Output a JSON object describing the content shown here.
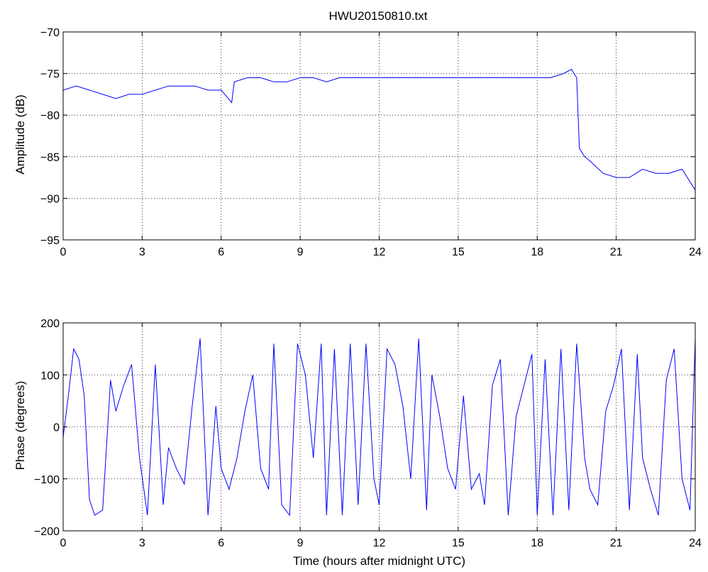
{
  "chart_data": [
    {
      "type": "line",
      "title": "HWU20150810.txt",
      "xlabel": "",
      "ylabel": "Amplitude (dB)",
      "xlim": [
        0,
        24
      ],
      "ylim": [
        -95,
        -70
      ],
      "xticks": [
        "0",
        "3",
        "6",
        "9",
        "12",
        "15",
        "18",
        "21",
        "24"
      ],
      "yticks": [
        "−70",
        "−75",
        "−80",
        "−85",
        "−90",
        "−95"
      ],
      "grid": true,
      "color": "#0000ff",
      "series": [
        {
          "x": [
            0,
            0.5,
            1,
            1.5,
            2,
            2.5,
            3,
            3.5,
            4,
            4.5,
            5,
            5.5,
            6,
            6.4,
            6.5,
            7,
            7.5,
            8,
            8.5,
            9,
            9.5,
            10,
            10.5,
            11,
            11.5,
            12,
            12.5,
            13,
            13.5,
            14,
            14.5,
            15,
            15.5,
            16,
            16.5,
            17,
            17.5,
            18,
            18.5,
            19,
            19.3,
            19.5,
            19.6,
            19.8,
            20,
            20.5,
            21,
            21.5,
            22,
            22.5,
            23,
            23.5,
            24
          ],
          "values": [
            -77,
            -76.5,
            -77,
            -77.5,
            -78,
            -77.5,
            -77.5,
            -77,
            -76.5,
            -76.5,
            -76.5,
            -77,
            -77,
            -78.5,
            -76,
            -75.5,
            -75.5,
            -76,
            -76,
            -75.5,
            -75.5,
            -76,
            -75.5,
            -75.5,
            -75.5,
            -75.5,
            -75.5,
            -75.5,
            -75.5,
            -75.5,
            -75.5,
            -75.5,
            -75.5,
            -75.5,
            -75.5,
            -75.5,
            -75.5,
            -75.5,
            -75.5,
            -75,
            -74.5,
            -75.5,
            -84,
            -85,
            -85.5,
            -87,
            -87.5,
            -87.5,
            -86.5,
            -87,
            -87,
            -86.5,
            -89
          ]
        }
      ]
    },
    {
      "type": "line",
      "title": "",
      "xlabel": "Time (hours after midnight UTC)",
      "ylabel": "Phase (degrees)",
      "xlim": [
        0,
        24
      ],
      "ylim": [
        -200,
        200
      ],
      "xticks": [
        "0",
        "3",
        "6",
        "9",
        "12",
        "15",
        "18",
        "21",
        "24"
      ],
      "yticks": [
        "200",
        "100",
        "0",
        "−100",
        "−200"
      ],
      "grid": true,
      "color": "#0000ff",
      "series": [
        {
          "x": [
            0,
            0.2,
            0.4,
            0.6,
            0.8,
            1.0,
            1.2,
            1.5,
            1.8,
            2.0,
            2.3,
            2.6,
            2.9,
            3.2,
            3.5,
            3.8,
            4.0,
            4.3,
            4.6,
            4.9,
            5.2,
            5.5,
            5.8,
            6.0,
            6.3,
            6.6,
            6.9,
            7.2,
            7.5,
            7.8,
            8.0,
            8.3,
            8.6,
            8.9,
            9.2,
            9.5,
            9.8,
            10.0,
            10.3,
            10.6,
            10.9,
            11.2,
            11.5,
            11.8,
            12.0,
            12.3,
            12.6,
            12.9,
            13.2,
            13.5,
            13.8,
            14.0,
            14.3,
            14.6,
            14.9,
            15.2,
            15.5,
            15.8,
            16.0,
            16.3,
            16.6,
            16.9,
            17.2,
            17.5,
            17.8,
            18.0,
            18.3,
            18.6,
            18.9,
            19.2,
            19.5,
            19.8,
            20.0,
            20.3,
            20.6,
            20.9,
            21.2,
            21.5,
            21.8,
            22.0,
            22.3,
            22.6,
            22.9,
            23.2,
            23.5,
            23.8,
            24.0
          ],
          "values": [
            -20,
            60,
            150,
            130,
            60,
            -140,
            -170,
            -160,
            90,
            30,
            80,
            120,
            -60,
            -170,
            120,
            -150,
            -40,
            -80,
            -110,
            40,
            170,
            -170,
            40,
            -80,
            -120,
            -60,
            30,
            100,
            -80,
            -120,
            160,
            -150,
            -170,
            160,
            100,
            -60,
            160,
            -170,
            150,
            -170,
            160,
            -150,
            160,
            -100,
            -150,
            150,
            120,
            40,
            -100,
            170,
            -160,
            100,
            20,
            -80,
            -120,
            60,
            -120,
            -90,
            -150,
            80,
            130,
            -170,
            20,
            80,
            140,
            -170,
            130,
            -170,
            150,
            -160,
            160,
            -60,
            -120,
            -150,
            30,
            80,
            150,
            -160,
            140,
            -60,
            -120,
            -170,
            90,
            150,
            -100,
            -160,
            170
          ]
        }
      ]
    }
  ]
}
